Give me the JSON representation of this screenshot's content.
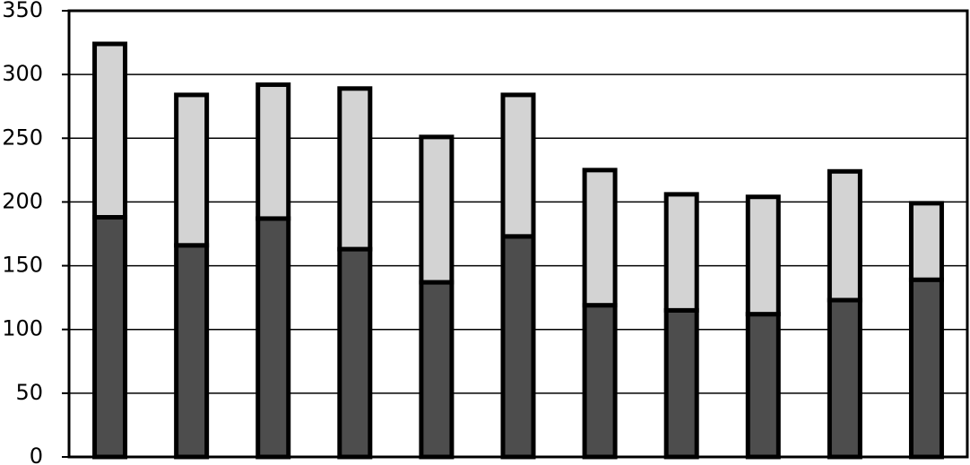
{
  "chart_data": {
    "type": "stacked-bar",
    "categories": [
      null,
      null,
      null,
      null,
      null,
      null,
      null,
      null,
      null,
      null,
      null
    ],
    "series": [
      {
        "color": "#4d4d4d",
        "values": [
          188,
          166,
          187,
          163,
          137,
          173,
          119,
          115,
          112,
          123,
          139
        ]
      },
      {
        "color": "#d3d3d3",
        "values": [
          136,
          118,
          105,
          126,
          114,
          111,
          106,
          91,
          92,
          101,
          60
        ]
      }
    ],
    "ylim": [
      0,
      350
    ],
    "yticks": [
      0,
      50,
      100,
      150,
      200,
      250,
      300,
      350
    ],
    "grid": true
  }
}
